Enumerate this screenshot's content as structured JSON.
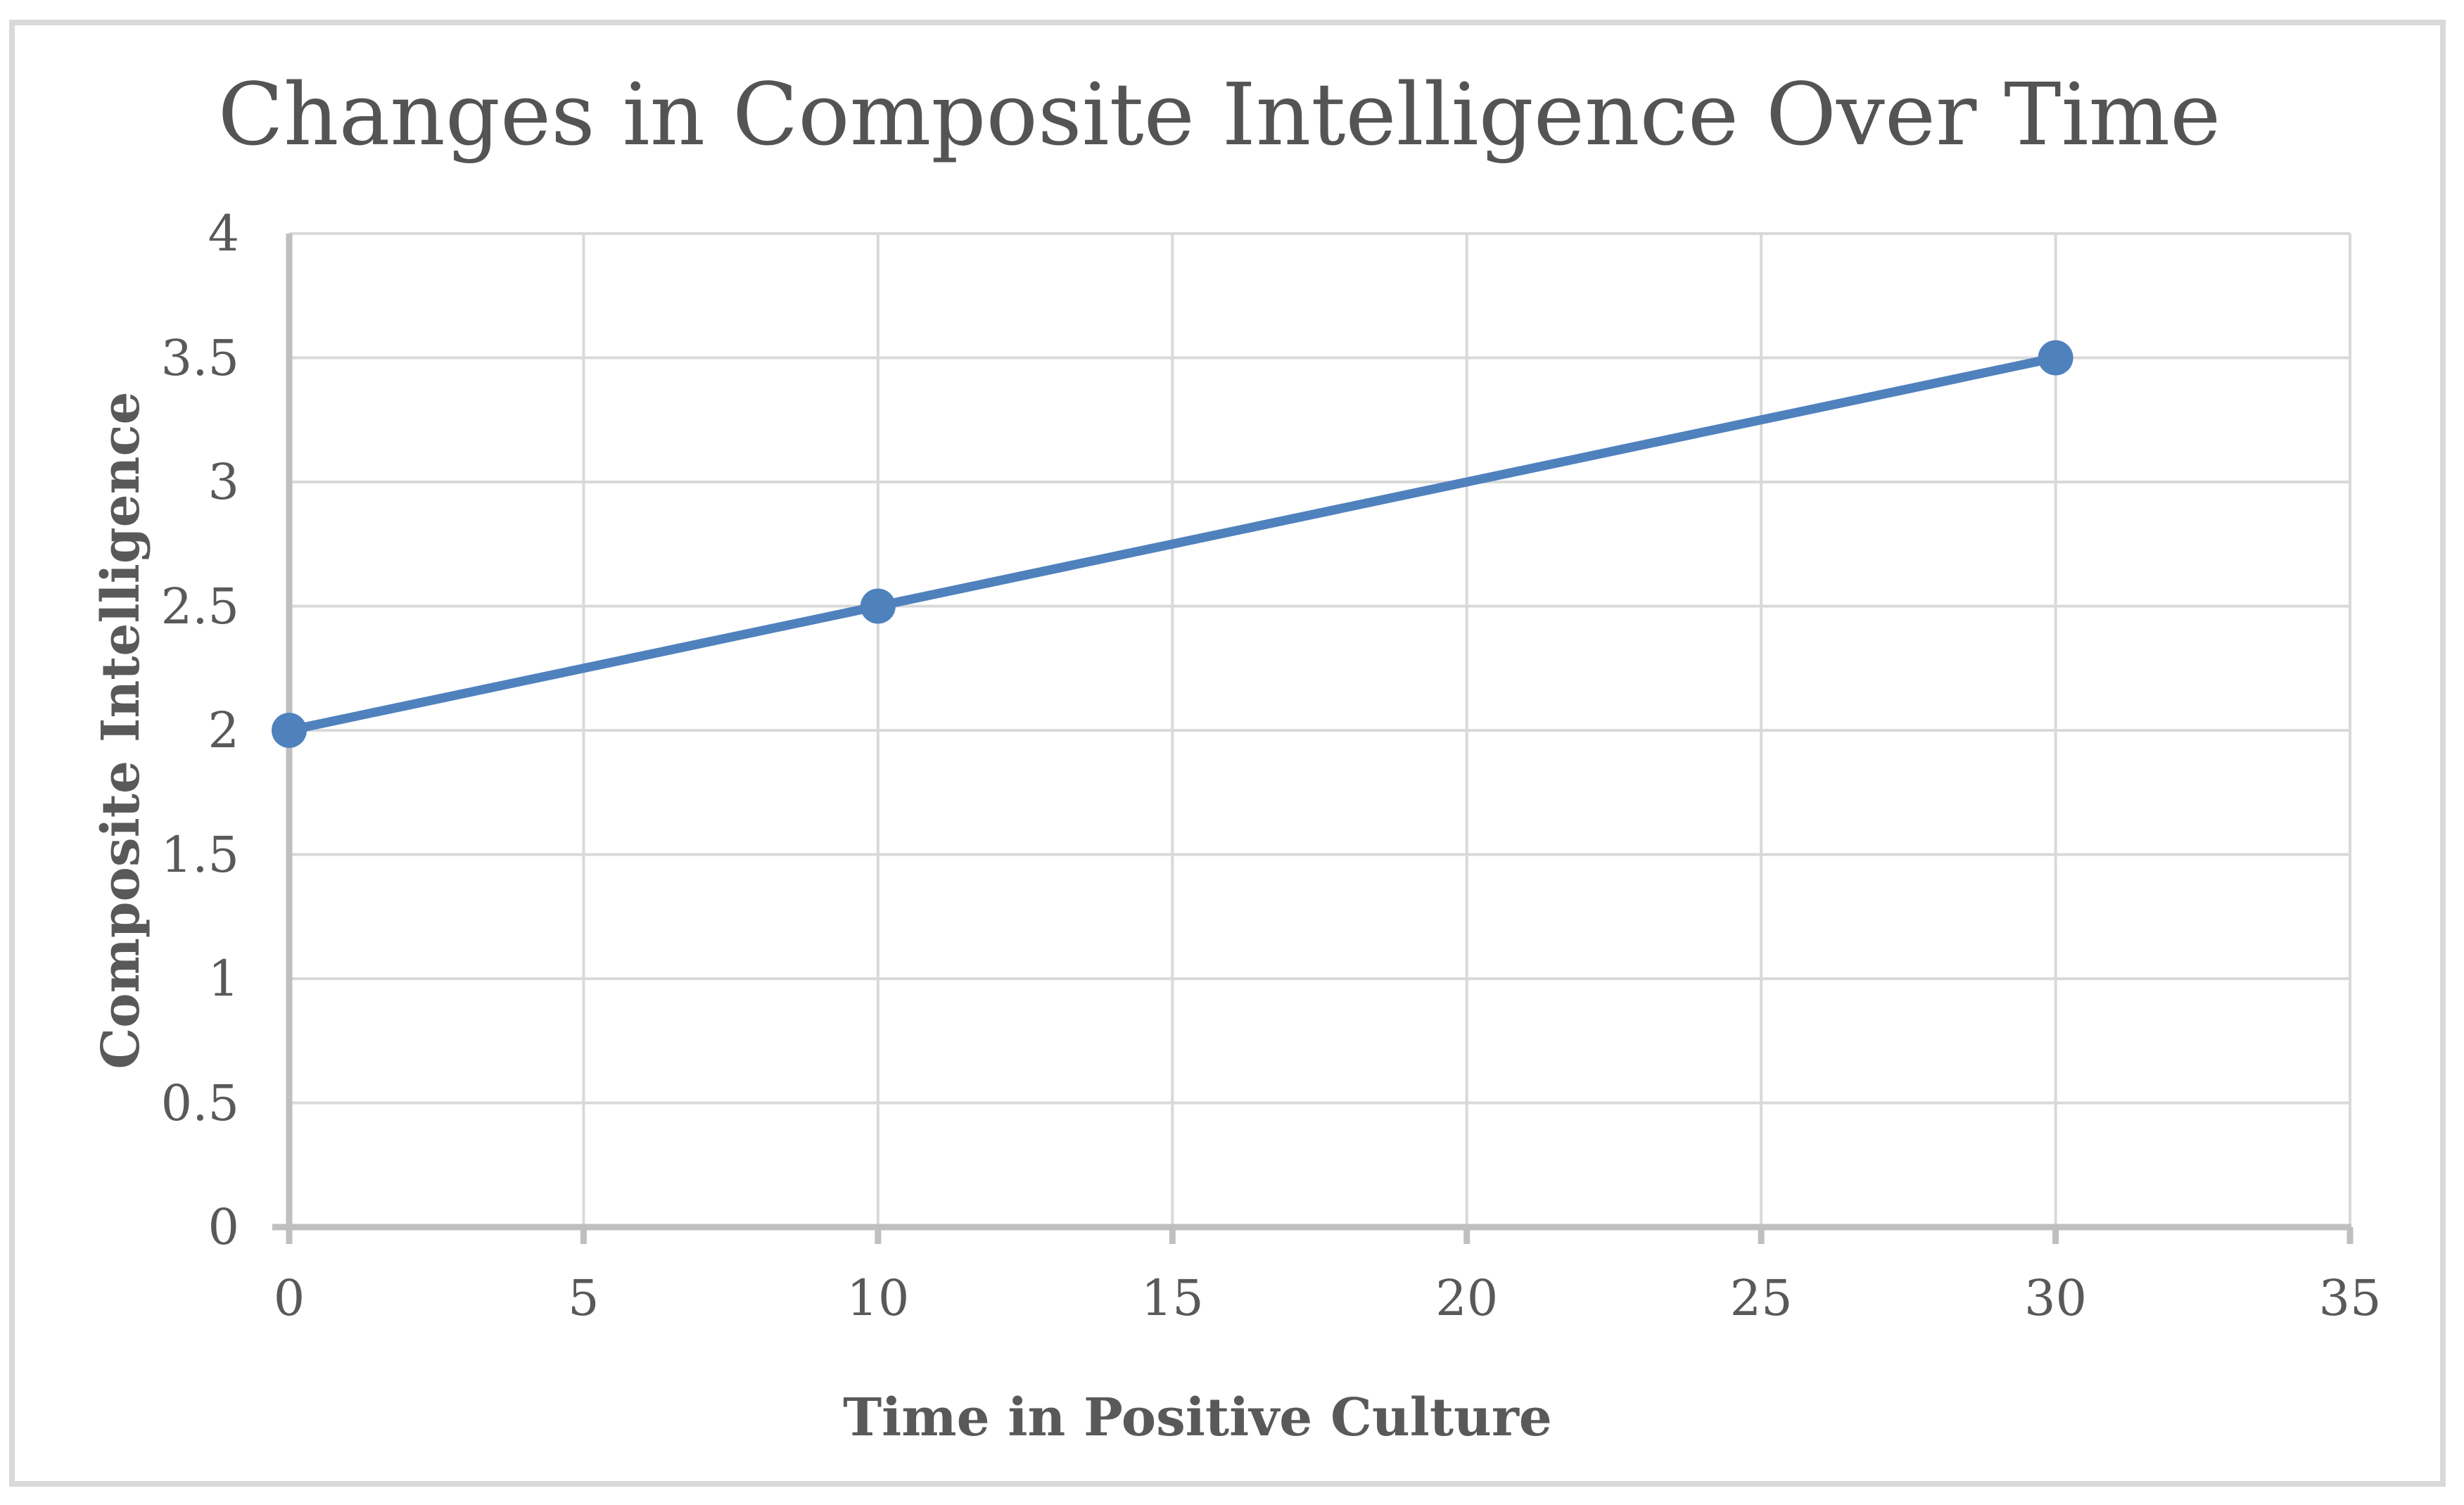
{
  "chart_data": {
    "type": "line",
    "title": "Changes in Composite Intelligence Over Time",
    "xlabel": "Time in Positive Culture",
    "ylabel": "Composite Intelligence",
    "series": [
      {
        "x": [
          0,
          10,
          30
        ],
        "y": [
          2,
          2.5,
          3.5
        ]
      }
    ],
    "x_ticks": [
      0,
      5,
      10,
      15,
      20,
      25,
      30,
      35
    ],
    "y_ticks": [
      0,
      0.5,
      1,
      1.5,
      2,
      2.5,
      3,
      3.5,
      4
    ],
    "xlim": [
      0,
      35
    ],
    "ylim": [
      0,
      4
    ],
    "grid": true,
    "legend": "none",
    "marker": "circle",
    "colors": {
      "series": "#4F81BD",
      "gridline": "#D9D9D9",
      "axis": "#BFBFBF",
      "border": "#D9D9D9",
      "tick_text": "#595959",
      "title_text": "#545454",
      "background": "#FFFFFF"
    }
  }
}
